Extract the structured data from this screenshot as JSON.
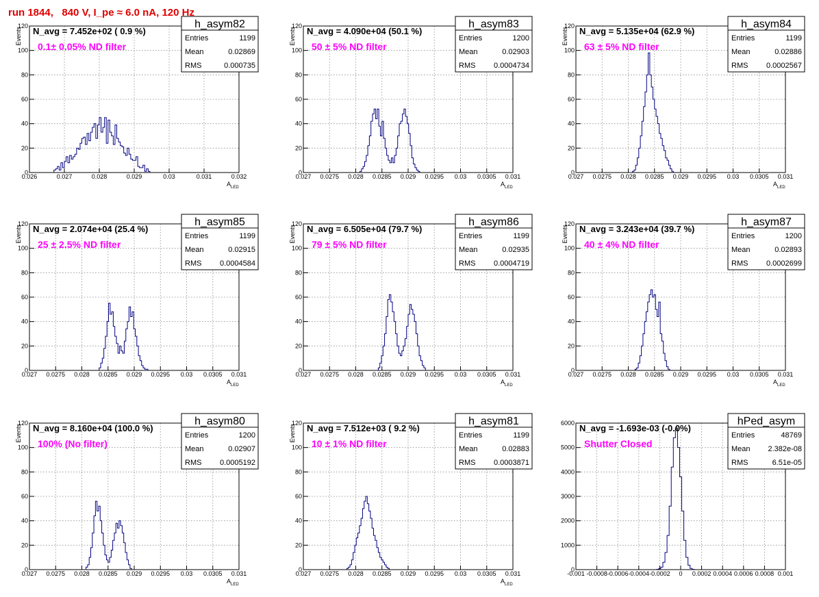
{
  "run_title": "run 1844,   840 V, I_pe ≈ 6.0 nA, 120 Hz",
  "colors": {
    "title": "#e00000",
    "filter_text": "#ff00ff",
    "histogram": "#000080",
    "grid": "#888888"
  },
  "y_axis_title": "Events",
  "stat_labels": {
    "entries": "Entries",
    "mean": "Mean",
    "rms": "RMS"
  },
  "chart_data": [
    {
      "type": "histogram",
      "name": "h_asym82",
      "n_avg": "N_avg = 7.452e+02 ( 0.9 %)",
      "filter": "0.1± 0.05% ND filter",
      "stats": {
        "entries": "1199",
        "mean": "0.02869",
        "rms": "0.000735"
      },
      "xlabel": "A_LED",
      "ylabel": "Events",
      "xlim": [
        0.026,
        0.032
      ],
      "ylim": [
        0,
        120
      ],
      "xticks": [
        0.026,
        0.027,
        0.028,
        0.029,
        0.03,
        0.031,
        0.032
      ],
      "xticklabels": [
        "0.026",
        "0.027",
        "0.028",
        "0.029",
        "0.03",
        "0.031",
        "0.032"
      ],
      "yticks": [
        0,
        20,
        40,
        60,
        80,
        100,
        120
      ],
      "yticklabels": [
        "0",
        "20",
        "40",
        "60",
        "80",
        "100",
        "120"
      ],
      "bins": {
        "start": 0.0266,
        "width": 5e-05,
        "values": [
          0,
          0,
          2,
          3,
          5,
          2,
          8,
          4,
          9,
          13,
          8,
          14,
          11,
          13,
          15,
          20,
          19,
          24,
          28,
          29,
          23,
          32,
          26,
          33,
          37,
          40,
          28,
          39,
          45,
          33,
          37,
          45,
          24,
          43,
          33,
          30,
          23,
          39,
          28,
          25,
          22,
          21,
          16,
          14,
          20,
          15,
          11,
          10,
          10,
          13,
          5,
          4,
          4,
          6,
          1,
          3,
          1,
          0,
          0,
          0
        ]
      }
    },
    {
      "type": "histogram",
      "name": "h_asym83",
      "n_avg": "N_avg = 4.090e+04 (50.1 %)",
      "filter": "50 ± 5% ND filter",
      "stats": {
        "entries": "1200",
        "mean": "0.02903",
        "rms": "0.0004734"
      },
      "xlabel": "A_LED",
      "ylabel": "Events",
      "xlim": [
        0.027,
        0.031
      ],
      "ylim": [
        0,
        120
      ],
      "xticks": [
        0.027,
        0.0275,
        0.028,
        0.0285,
        0.029,
        0.0295,
        0.03,
        0.0305,
        0.031
      ],
      "xticklabels": [
        "0.027",
        "0.0275",
        "0.028",
        "0.0285",
        "0.029",
        "0.0295",
        "0.03",
        "0.0305",
        "0.031"
      ],
      "yticks": [
        0,
        20,
        40,
        60,
        80,
        100,
        120
      ],
      "yticklabels": [
        "0",
        "20",
        "40",
        "60",
        "80",
        "100",
        "120"
      ],
      "bins": {
        "start": 0.02805,
        "width": 3e-05,
        "values": [
          0,
          1,
          3,
          5,
          9,
          14,
          22,
          30,
          42,
          48,
          52,
          44,
          52,
          38,
          30,
          42,
          28,
          20,
          14,
          10,
          8,
          12,
          8,
          14,
          20,
          30,
          40,
          42,
          48,
          52,
          46,
          40,
          32,
          22,
          12,
          7,
          4,
          2,
          1,
          0
        ]
      }
    },
    {
      "type": "histogram",
      "name": "h_asym84",
      "n_avg": "N_avg = 5.135e+04 (62.9 %)",
      "filter": "63 ± 5% ND filter",
      "stats": {
        "entries": "1199",
        "mean": "0.02886",
        "rms": "0.0002567"
      },
      "xlabel": "A_LED",
      "ylabel": "Events",
      "xlim": [
        0.027,
        0.031
      ],
      "ylim": [
        0,
        120
      ],
      "xticks": [
        0.027,
        0.0275,
        0.028,
        0.0285,
        0.029,
        0.0295,
        0.03,
        0.0305,
        0.031
      ],
      "xticklabels": [
        "0.027",
        "0.0275",
        "0.028",
        "0.0285",
        "0.029",
        "0.0295",
        "0.03",
        "0.0305",
        "0.031"
      ],
      "yticks": [
        0,
        20,
        40,
        60,
        80,
        100,
        120
      ],
      "yticklabels": [
        "0",
        "20",
        "40",
        "60",
        "80",
        "100",
        "120"
      ],
      "bins": {
        "start": 0.02805,
        "width": 3e-05,
        "values": [
          0,
          1,
          2,
          6,
          12,
          20,
          30,
          42,
          54,
          66,
          80,
          98,
          80,
          70,
          60,
          52,
          46,
          40,
          32,
          28,
          22,
          18,
          12,
          10,
          6,
          3,
          1,
          0
        ]
      }
    },
    {
      "type": "histogram",
      "name": "h_asym85",
      "n_avg": "N_avg = 2.074e+04 (25.4 %)",
      "filter": "25 ± 2.5% ND filter",
      "stats": {
        "entries": "1199",
        "mean": "0.02915",
        "rms": "0.0004584"
      },
      "xlabel": "A_LED",
      "ylabel": "Events",
      "xlim": [
        0.027,
        0.031
      ],
      "ylim": [
        0,
        120
      ],
      "xticks": [
        0.027,
        0.0275,
        0.028,
        0.0285,
        0.029,
        0.0295,
        0.03,
        0.0305,
        0.031
      ],
      "xticklabels": [
        "0.027",
        "0.0275",
        "0.028",
        "0.0285",
        "0.029",
        "0.0295",
        "0.03",
        "0.0305",
        "0.031"
      ],
      "yticks": [
        0,
        20,
        40,
        60,
        80,
        100,
        120
      ],
      "yticklabels": [
        "0",
        "20",
        "40",
        "60",
        "80",
        "100",
        "120"
      ],
      "bins": {
        "start": 0.0283,
        "width": 3e-05,
        "values": [
          0,
          2,
          6,
          10,
          18,
          28,
          40,
          55,
          46,
          48,
          36,
          28,
          22,
          14,
          20,
          16,
          14,
          24,
          34,
          40,
          52,
          44,
          48,
          34,
          28,
          20,
          12,
          8,
          4,
          2,
          1,
          1,
          0
        ]
      }
    },
    {
      "type": "histogram",
      "name": "h_asym86",
      "n_avg": "N_avg = 6.505e+04 (79.7 %)",
      "filter": "79 ± 5% ND filter",
      "stats": {
        "entries": "1199",
        "mean": "0.02935",
        "rms": "0.0004719"
      },
      "xlabel": "A_LED",
      "ylabel": "Events",
      "xlim": [
        0.027,
        0.031
      ],
      "ylim": [
        0,
        120
      ],
      "xticks": [
        0.027,
        0.0275,
        0.028,
        0.0285,
        0.029,
        0.0295,
        0.03,
        0.0305,
        0.031
      ],
      "xticklabels": [
        "0.027",
        "0.0275",
        "0.028",
        "0.0285",
        "0.029",
        "0.0295",
        "0.03",
        "0.0305",
        "0.031"
      ],
      "yticks": [
        0,
        20,
        40,
        60,
        80,
        100,
        120
      ],
      "yticklabels": [
        "0",
        "20",
        "40",
        "60",
        "80",
        "100",
        "120"
      ],
      "bins": {
        "start": 0.0284,
        "width": 3e-05,
        "values": [
          0,
          2,
          6,
          12,
          20,
          30,
          44,
          58,
          62,
          56,
          48,
          40,
          30,
          20,
          14,
          12,
          16,
          20,
          26,
          36,
          46,
          54,
          50,
          46,
          40,
          30,
          20,
          12,
          8,
          4,
          2,
          0
        ]
      }
    },
    {
      "type": "histogram",
      "name": "h_asym87",
      "n_avg": "N_avg = 3.243e+04 (39.7 %)",
      "filter": "40 ± 4% ND filter",
      "stats": {
        "entries": "1200",
        "mean": "0.02893",
        "rms": "0.0002699"
      },
      "xlabel": "A_LED",
      "ylabel": "Events",
      "xlim": [
        0.027,
        0.031
      ],
      "ylim": [
        0,
        120
      ],
      "xticks": [
        0.027,
        0.0275,
        0.028,
        0.0285,
        0.029,
        0.0295,
        0.03,
        0.0305,
        0.031
      ],
      "xticklabels": [
        "0.027",
        "0.0275",
        "0.028",
        "0.0285",
        "0.029",
        "0.0295",
        "0.03",
        "0.0305",
        "0.031"
      ],
      "yticks": [
        0,
        20,
        40,
        60,
        80,
        100,
        120
      ],
      "yticklabels": [
        "0",
        "20",
        "40",
        "60",
        "80",
        "100",
        "120"
      ],
      "bins": {
        "start": 0.0281,
        "width": 3e-05,
        "values": [
          0,
          1,
          2,
          6,
          12,
          20,
          30,
          40,
          48,
          56,
          62,
          66,
          60,
          62,
          50,
          44,
          56,
          30,
          24,
          14,
          8,
          3,
          1,
          0
        ]
      }
    },
    {
      "type": "histogram",
      "name": "h_asym80",
      "n_avg": "N_avg = 8.160e+04 (100.0 %)",
      "filter": "100% (No filter)",
      "stats": {
        "entries": "1200",
        "mean": "0.02907",
        "rms": "0.0005192"
      },
      "xlabel": "A_LED",
      "ylabel": "Events",
      "xlim": [
        0.027,
        0.031
      ],
      "ylim": [
        0,
        120
      ],
      "xticks": [
        0.027,
        0.0275,
        0.028,
        0.0285,
        0.029,
        0.0295,
        0.03,
        0.0305,
        0.031
      ],
      "xticklabels": [
        "0.027",
        "0.0275",
        "0.028",
        "0.0285",
        "0.029",
        "0.0295",
        "0.03",
        "0.0305",
        "0.031"
      ],
      "yticks": [
        0,
        20,
        40,
        60,
        80,
        100,
        120
      ],
      "yticklabels": [
        "0",
        "20",
        "40",
        "60",
        "80",
        "100",
        "120"
      ],
      "bins": {
        "start": 0.02805,
        "width": 3e-05,
        "values": [
          0,
          2,
          4,
          10,
          18,
          30,
          44,
          56,
          48,
          52,
          40,
          30,
          20,
          12,
          8,
          6,
          10,
          16,
          24,
          30,
          38,
          34,
          40,
          36,
          30,
          22,
          14,
          8,
          4,
          1,
          0
        ]
      }
    },
    {
      "type": "histogram",
      "name": "h_asym81",
      "n_avg": "N_avg = 7.512e+03 ( 9.2 %)",
      "filter": "10 ± 1% ND filter",
      "stats": {
        "entries": "1199",
        "mean": "0.02883",
        "rms": "0.0003871"
      },
      "xlabel": "A_LED",
      "ylabel": "Events",
      "xlim": [
        0.027,
        0.031
      ],
      "ylim": [
        0,
        120
      ],
      "xticks": [
        0.027,
        0.0275,
        0.028,
        0.0285,
        0.029,
        0.0295,
        0.03,
        0.0305,
        0.031
      ],
      "xticklabels": [
        "0.027",
        "0.0275",
        "0.028",
        "0.0285",
        "0.029",
        "0.0295",
        "0.03",
        "0.0305",
        "0.031"
      ],
      "yticks": [
        0,
        20,
        40,
        60,
        80,
        100,
        120
      ],
      "yticklabels": [
        "0",
        "20",
        "40",
        "60",
        "80",
        "100",
        "120"
      ],
      "bins": {
        "start": 0.0278,
        "width": 3e-05,
        "values": [
          0,
          1,
          2,
          4,
          8,
          14,
          20,
          26,
          30,
          36,
          42,
          50,
          56,
          60,
          54,
          48,
          42,
          34,
          28,
          24,
          18,
          14,
          10,
          8,
          6,
          4,
          2,
          1,
          0
        ]
      }
    },
    {
      "type": "histogram",
      "name": "hPed_asym",
      "n_avg": "N_avg = -1.693e-03 (-0.0%)",
      "filter": "Shutter Closed",
      "stats": {
        "entries": "48769",
        "mean": "2.382e-08",
        "rms": "6.51e-05"
      },
      "xlabel": "",
      "ylabel": "",
      "xlim": [
        -0.001,
        0.001
      ],
      "ylim": [
        0,
        6000
      ],
      "xticks": [
        -0.001,
        -0.0008,
        -0.0006,
        -0.0004,
        -0.0002,
        0,
        0.0002,
        0.0004,
        0.0006,
        0.0008,
        0.001
      ],
      "xticklabels": [
        "-0.001",
        "-0.0008",
        "-0.0006",
        "-0.0004",
        "-0.0002",
        "0",
        "0.0002",
        "0.0004",
        "0.0006",
        "0.0008",
        "0.001"
      ],
      "yticks": [
        0,
        1000,
        2000,
        3000,
        4000,
        5000,
        6000
      ],
      "yticklabels": [
        "0",
        "1000",
        "2000",
        "3000",
        "4000",
        "5000",
        "6000"
      ],
      "bins": {
        "start": -0.00025,
        "width": 2e-05,
        "values": [
          0,
          10,
          40,
          100,
          300,
          700,
          1400,
          2600,
          4200,
          5400,
          5800,
          5000,
          3800,
          2400,
          1200,
          500,
          180,
          50,
          10,
          0
        ]
      }
    }
  ]
}
